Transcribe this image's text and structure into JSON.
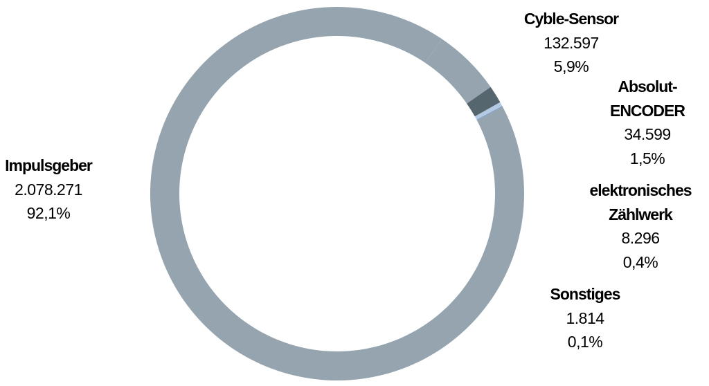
{
  "chart_data": {
    "type": "pie",
    "style": "donut",
    "title": "",
    "slices": [
      {
        "key": "cyble",
        "name": "Cyble-Sensor",
        "value": 132597,
        "value_label": "132.597",
        "percent_label": "5,9%",
        "color": "#95a4ae"
      },
      {
        "key": "absolut",
        "name": "Absolut-ENCODER",
        "name_lines": [
          "Absolut-",
          "ENCODER"
        ],
        "value": 34599,
        "value_label": "34.599",
        "percent_label": "1,5%",
        "color": "#56666f"
      },
      {
        "key": "zaehlwerk",
        "name": "elektronisches Zählwerk",
        "name_lines": [
          "elektronisches",
          "Zählwerk"
        ],
        "value": 8296,
        "value_label": "8.296",
        "percent_label": "0,4%",
        "color": "#b4c9e3"
      },
      {
        "key": "sonstiges",
        "name": "Sonstiges",
        "value": 1814,
        "value_label": "1.814",
        "percent_label": "0,1%",
        "color": "#7b9cc3"
      },
      {
        "key": "impulsgeber",
        "name": "Impulsgeber",
        "value": 2078271,
        "value_label": "2.078.271",
        "percent_label": "92,1%",
        "color": "#95a4ae"
      }
    ],
    "legend": "none"
  }
}
